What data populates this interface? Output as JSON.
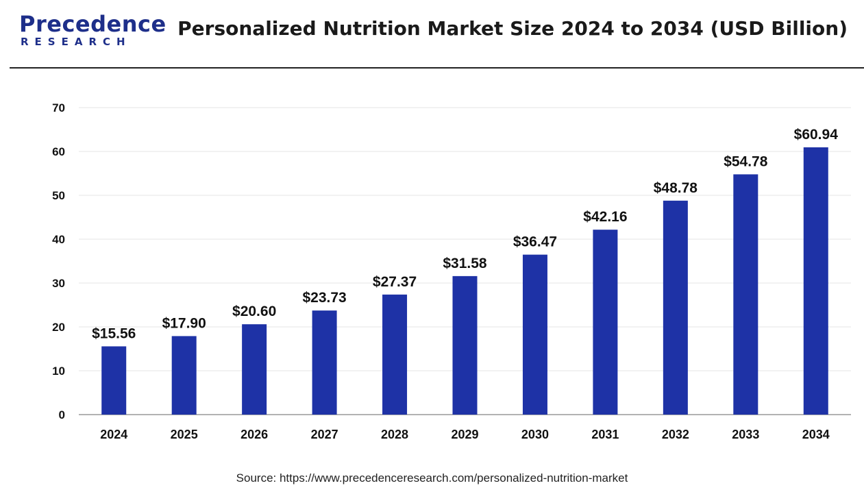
{
  "header": {
    "logo_main": "Precedence",
    "logo_sub": "RESEARCH",
    "title": "Personalized Nutrition Market Size 2024 to 2034 (USD Billion)"
  },
  "source": "Source: https://www.precedenceresearch.com/personalized-nutrition-market",
  "colors": {
    "bar": "#1e32a6",
    "brand": "#1e2f8a",
    "grid": "#e6e6e6",
    "axis": "#999999"
  },
  "chart_data": {
    "type": "bar",
    "title": "Personalized Nutrition Market Size 2024 to 2034 (USD Billion)",
    "xlabel": "",
    "ylabel": "",
    "categories": [
      "2024",
      "2025",
      "2026",
      "2027",
      "2028",
      "2029",
      "2030",
      "2031",
      "2032",
      "2033",
      "2034"
    ],
    "values": [
      15.56,
      17.9,
      20.6,
      23.73,
      27.37,
      31.58,
      36.47,
      42.16,
      48.78,
      54.78,
      60.94
    ],
    "value_labels": [
      "$15.56",
      "$17.90",
      "$20.60",
      "$23.73",
      "$27.37",
      "$31.58",
      "$36.47",
      "$42.16",
      "$48.78",
      "$54.78",
      "$60.94"
    ],
    "ylim": [
      0,
      70
    ],
    "yticks": [
      0,
      10,
      20,
      30,
      40,
      50,
      60,
      70
    ],
    "grid": true,
    "legend": "none"
  }
}
